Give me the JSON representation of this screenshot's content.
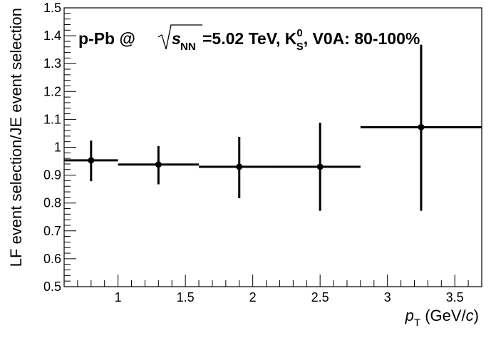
{
  "chart_data": {
    "type": "scatter",
    "title": "",
    "xlabel": "p_T (GeV/c)",
    "ylabel": "LF event selection/JE event selection",
    "xlim": [
      0.6,
      3.7
    ],
    "ylim": [
      0.5,
      1.5
    ],
    "x_ticks": [
      1,
      1.5,
      2,
      2.5,
      3,
      3.5
    ],
    "x_tick_labels": [
      "1",
      "1.5",
      "2",
      "2.5",
      "3",
      "3.5"
    ],
    "y_ticks": [
      0.5,
      0.6,
      0.7,
      0.8,
      0.9,
      1.0,
      1.1,
      1.2,
      1.3,
      1.4,
      1.5
    ],
    "y_tick_labels": [
      "0.5",
      "0.6",
      "0.7",
      "0.8",
      "0.9",
      "1",
      "1.1",
      "1.2",
      "1.3",
      "1.4",
      "1.5"
    ],
    "grid": false,
    "legend": "none",
    "annotation": {
      "prefix": "p-Pb @ ",
      "sqrt_var": "s",
      "sqrt_sub": "NN",
      "energy": "=5.02 TeV, K",
      "particle_sup": "0",
      "particle_sub": "S",
      "suffix": ", V0A: 80-100%"
    },
    "xlabel_parts": {
      "var": "p",
      "sub": "T",
      "unit_open": " (GeV/",
      "unit_var": "c",
      "unit_close": ")"
    },
    "series": [
      {
        "points": [
          {
            "x": 0.8,
            "xlo": 0.6,
            "xhi": 1.0,
            "y": 0.953,
            "ylo": 0.878,
            "yhi": 1.024
          },
          {
            "x": 1.3,
            "xlo": 1.0,
            "xhi": 1.6,
            "y": 0.938,
            "ylo": 0.867,
            "yhi": 1.004
          },
          {
            "x": 1.9,
            "xlo": 1.6,
            "xhi": 2.2,
            "y": 0.93,
            "ylo": 0.817,
            "yhi": 1.037
          },
          {
            "x": 2.5,
            "xlo": 2.2,
            "xhi": 2.8,
            "y": 0.93,
            "ylo": 0.772,
            "yhi": 1.088
          },
          {
            "x": 3.25,
            "xlo": 2.8,
            "xhi": 3.7,
            "y": 1.072,
            "ylo": 0.772,
            "yhi": 1.368
          }
        ]
      }
    ]
  }
}
